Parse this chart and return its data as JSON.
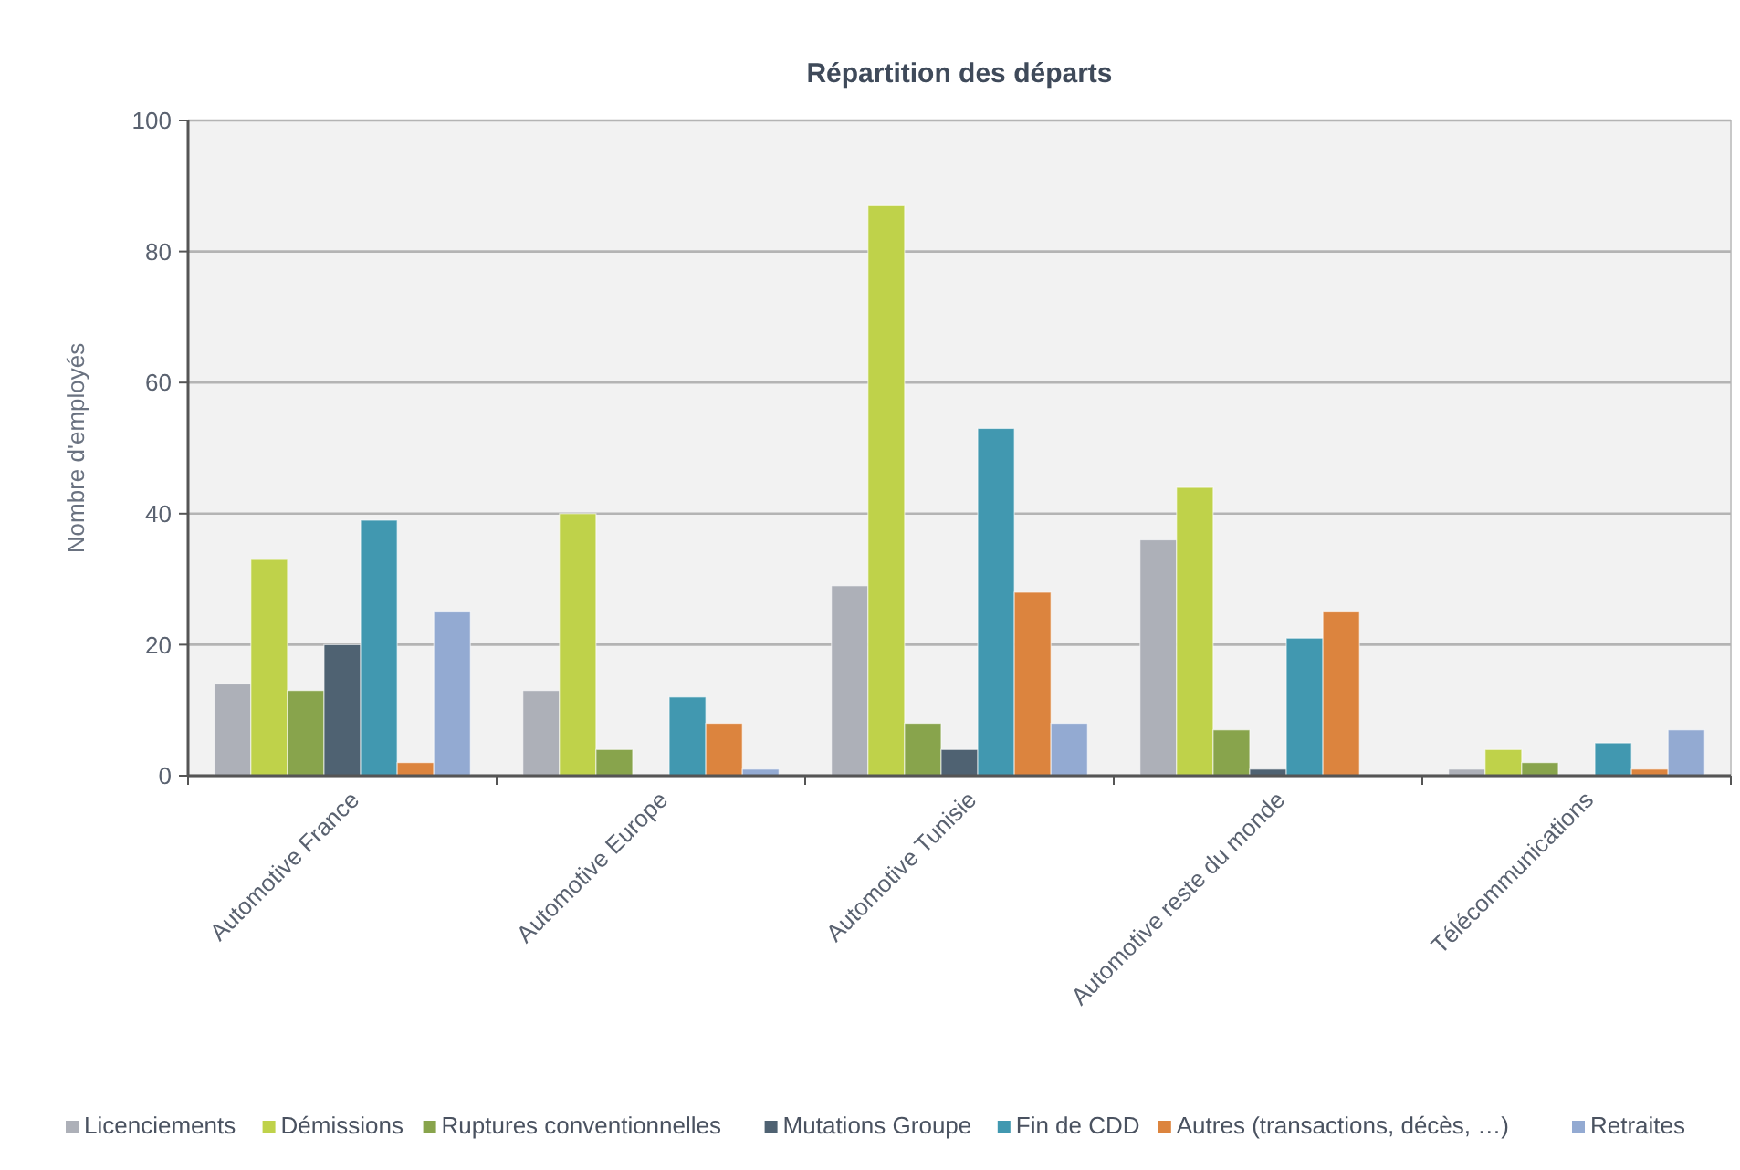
{
  "chart_data": {
    "type": "bar",
    "title": "Répartition des départs",
    "ylabel": "Nombre d'employés",
    "categories": [
      "Automotive France",
      "Automotive Europe",
      "Automotive Tunisie",
      "Automotive reste du monde",
      "Télécommunications"
    ],
    "series": [
      {
        "name": "Licenciements",
        "color": "#adb0b8",
        "values": [
          14,
          13,
          29,
          36,
          1
        ]
      },
      {
        "name": "Démissions",
        "color": "#bfd24a",
        "values": [
          33,
          40,
          87,
          44,
          4
        ]
      },
      {
        "name": "Ruptures conventionnelles",
        "color": "#88a44c",
        "values": [
          13,
          4,
          8,
          7,
          2
        ]
      },
      {
        "name": "Mutations Groupe",
        "color": "#4f6272",
        "values": [
          20,
          0,
          4,
          1,
          0
        ]
      },
      {
        "name": "Fin de CDD",
        "color": "#4198b0",
        "values": [
          39,
          12,
          53,
          21,
          5
        ]
      },
      {
        "name": "Autres (transactions, décès, …)",
        "color": "#dc843e",
        "values": [
          2,
          8,
          28,
          25,
          1
        ]
      },
      {
        "name": "Retraites",
        "color": "#93aad2",
        "values": [
          25,
          1,
          8,
          0,
          7
        ]
      }
    ],
    "ylim": [
      0,
      100
    ],
    "yticks": [
      0,
      20,
      40,
      60,
      80,
      100
    ],
    "grid": "y",
    "legend": "bottom"
  }
}
